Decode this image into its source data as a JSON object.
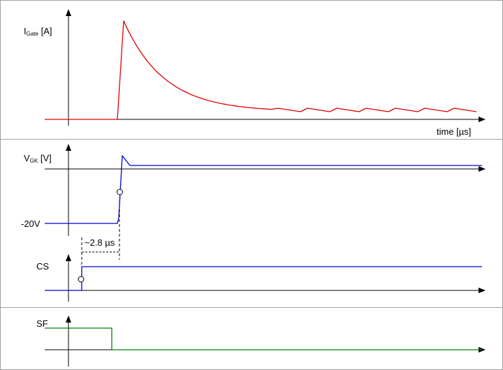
{
  "colors": {
    "gate_current": "#e00000",
    "vgk": "#0000d0",
    "cs": "#0000d0",
    "sf": "#008000",
    "axis": "#000000",
    "frame": "#a0a0a0"
  },
  "labels": {
    "igate": {
      "main": "I",
      "sub": "Gate",
      "unit": " [A]"
    },
    "time": "time [µs]",
    "vgk": {
      "main": "V",
      "sub": "GK",
      "unit": " [V]"
    },
    "neg20v": "-20V",
    "delay": "~2.8 µs",
    "cs": "CS",
    "sf": "SF"
  }
}
